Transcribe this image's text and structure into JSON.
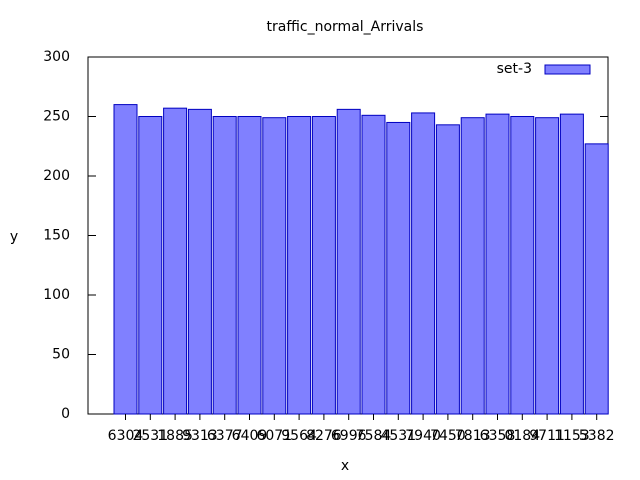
{
  "chart_data": {
    "type": "bar",
    "title": "traffic_normal_Arrivals",
    "xlabel": "x",
    "ylabel": "y",
    "categories": [
      "6304",
      "2531",
      "1885",
      "9313",
      "6377",
      "6409",
      "6071",
      "9564",
      "8276",
      "6996",
      "7584",
      "4531",
      "7940",
      "7450",
      "7813",
      "6358",
      "0184",
      "9711",
      "1153",
      "5382"
    ],
    "series": [
      {
        "name": "set-3",
        "color": "#8080ff",
        "values": [
          260,
          250,
          257,
          256,
          250,
          250,
          249,
          250,
          250,
          256,
          251,
          245,
          253,
          243,
          249,
          252,
          250,
          249,
          252,
          227
        ]
      }
    ],
    "ylim": [
      0,
      300
    ],
    "yticks": [
      0,
      50,
      100,
      150,
      200,
      250,
      300
    ],
    "legend": "top-right"
  }
}
